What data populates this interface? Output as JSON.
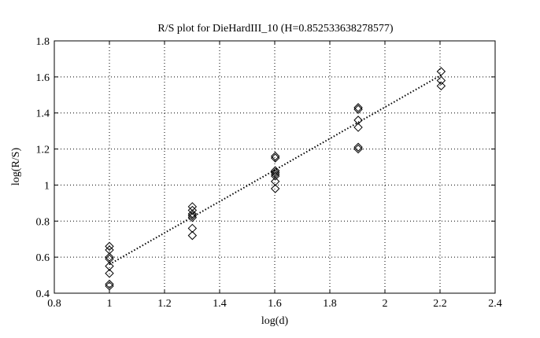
{
  "chart_data": {
    "type": "scatter",
    "title": "R/S plot for DieHardIII_10 (H=0.852533638278577)",
    "xlabel": "log(d)",
    "ylabel": "log(R/S)",
    "xlim": [
      0.8,
      2.4
    ],
    "ylim": [
      0.4,
      1.8
    ],
    "xticks": [
      "0.8",
      "1",
      "1.2",
      "1.4",
      "1.6",
      "1.8",
      "2",
      "2.2",
      "2.4"
    ],
    "yticks": [
      "0.4",
      "0.6",
      "0.8",
      "1",
      "1.2",
      "1.4",
      "1.6",
      "1.8"
    ],
    "grid": true,
    "marker": "diamond",
    "points": {
      "x": [
        1.0,
        1.0,
        1.0,
        1.0,
        1.0,
        1.0,
        1.0,
        1.0,
        1.301,
        1.301,
        1.301,
        1.301,
        1.301,
        1.301,
        1.301,
        1.602,
        1.602,
        1.602,
        1.602,
        1.602,
        1.602,
        1.602,
        1.602,
        1.903,
        1.903,
        1.903,
        1.903,
        1.903,
        1.903,
        2.204,
        2.204,
        2.204
      ],
      "y": [
        0.66,
        0.64,
        0.6,
        0.59,
        0.55,
        0.51,
        0.45,
        0.44,
        0.88,
        0.86,
        0.84,
        0.82,
        0.83,
        0.76,
        0.72,
        1.16,
        1.15,
        1.08,
        1.07,
        1.06,
        1.05,
        1.02,
        0.98,
        1.43,
        1.42,
        1.36,
        1.32,
        1.21,
        1.2,
        1.63,
        1.58,
        1.55
      ]
    },
    "fit_line": {
      "x": [
        1.0,
        2.204
      ],
      "y": [
        0.56,
        1.61
      ]
    }
  }
}
